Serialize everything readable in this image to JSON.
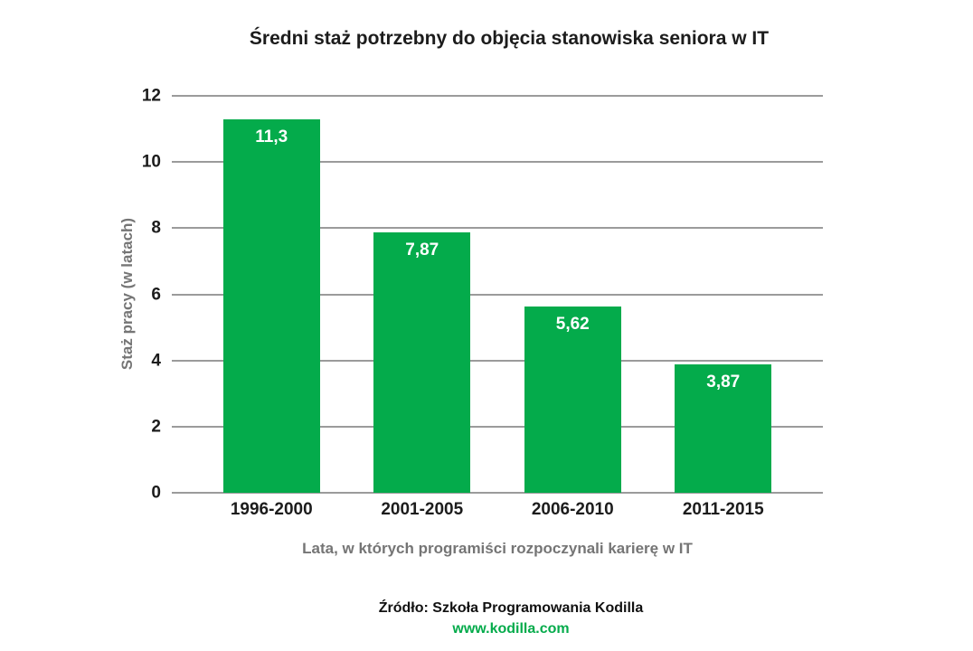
{
  "chart_data": {
    "type": "bar",
    "title": "Średni staż potrzebny do objęcia stanowiska seniora w IT",
    "xlabel": "Lata, w których programiści rozpoczynali karierę w IT",
    "ylabel": "Staż pracy (w latach)",
    "categories": [
      "1996-2000",
      "2001-2005",
      "2006-2010",
      "2011-2015"
    ],
    "values": [
      11.3,
      7.87,
      5.62,
      3.87
    ],
    "value_labels": [
      "11,3",
      "7,87",
      "5,62",
      "3,87"
    ],
    "ylim": [
      0,
      12
    ],
    "yticks": [
      0,
      2,
      4,
      6,
      8,
      10,
      12
    ],
    "grid": true,
    "legend": "none",
    "bar_color": "#04ab4b",
    "value_label_color": "#ffffff"
  },
  "footer": {
    "source": "Źródło: Szkoła Programowania Kodilla",
    "url": "www.kodilla.com"
  },
  "colors": {
    "accent_green": "#04ab4b",
    "grid_gray": "#9b9b9b",
    "axis_title_gray": "#757575",
    "text_black": "#1c1c1c",
    "background": "#ffffff"
  }
}
